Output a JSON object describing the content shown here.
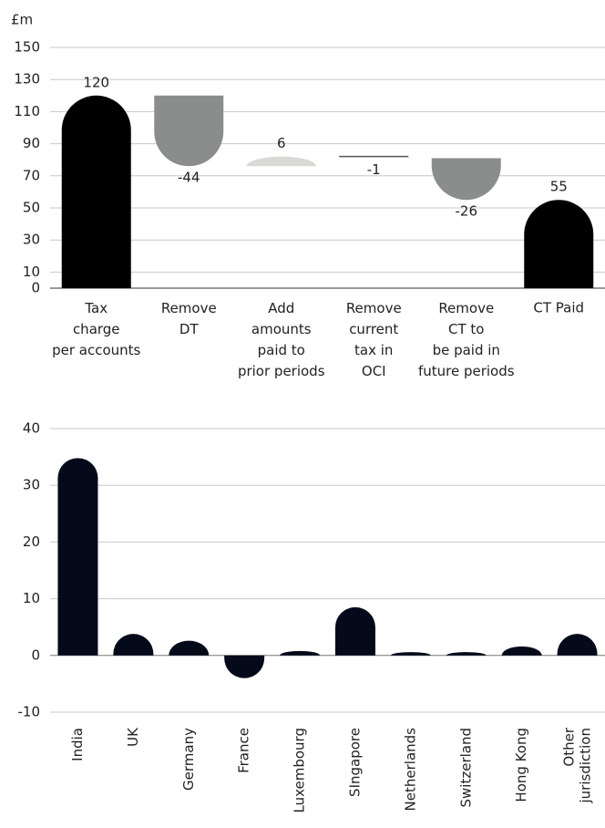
{
  "chart_data": [
    {
      "type": "waterfall",
      "y_label": "£m",
      "categories": [
        "Tax\ncharge\nper accounts",
        "Remove\nDT",
        "Add\namounts\npaid to\nprior periods",
        "Remove\ncurrent\ntax in\nOCI",
        "Remove\nCT to\nbe paid in\nfuture periods",
        "CT Paid"
      ],
      "values": [
        120,
        -44,
        6,
        -1,
        -26,
        55
      ],
      "colors": [
        "#000000",
        "#8a8d8c",
        "#d9d9d6",
        "#8a8d8c",
        "#8a8d8c",
        "#000000"
      ],
      "ylim": [
        0,
        150
      ],
      "yticks": [
        0,
        10,
        30,
        50,
        70,
        90,
        110,
        130,
        150
      ],
      "grid": true
    },
    {
      "type": "bar",
      "categories": [
        "India",
        "UK",
        "Germany",
        "France",
        "Luxembourg",
        "SIngapore",
        "Netherlands",
        "Switzerland",
        "Hong Kong",
        "Other\njurisdiction"
      ],
      "values": [
        34.8,
        3.8,
        2.6,
        -4,
        0.8,
        8.5,
        0.6,
        0.6,
        1.6,
        3.8
      ],
      "color": "#050a1a",
      "ylim": [
        -10,
        40
      ],
      "yticks": [
        -10,
        0,
        10,
        20,
        30,
        40
      ],
      "grid": true
    }
  ]
}
